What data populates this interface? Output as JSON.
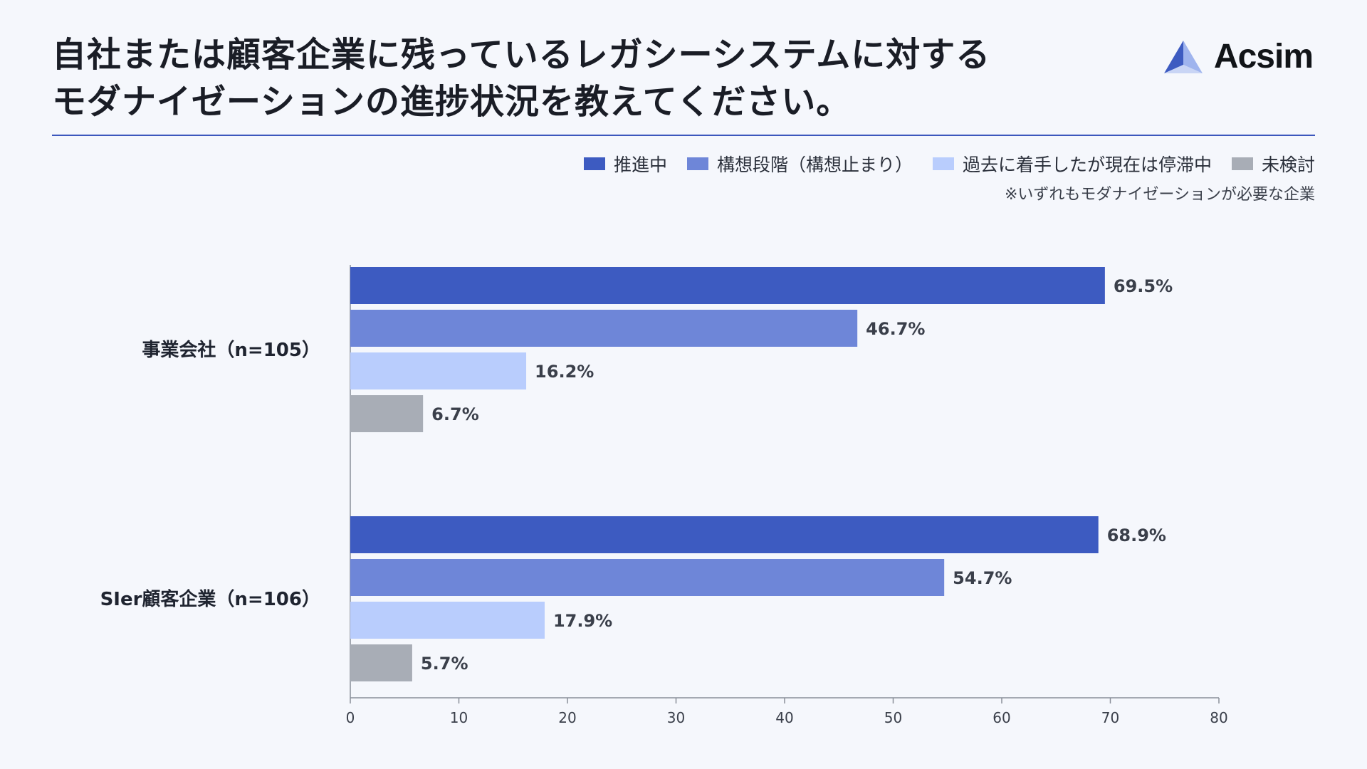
{
  "title": {
    "line1": "自社または顧客企業に残っているレガシーシステムに対する",
    "line2": "モダナイゼーションの進捗状況を教えてください。"
  },
  "logo": {
    "text": "Acsim"
  },
  "note": "※いずれもモダナイゼーションが必要な企業",
  "colors": {
    "series1": "#3d5bc1",
    "series2": "#6e86d8",
    "series3": "#b9cdfd",
    "series4": "#a8adb6",
    "rule": "#3c57bd"
  },
  "chart_data": {
    "type": "bar",
    "orientation": "horizontal",
    "categories": [
      "事業会社（n=105）",
      "SIer顧客企業（n=106）"
    ],
    "series": [
      {
        "name": "推進中",
        "values": [
          69.5,
          68.9
        ],
        "labels": [
          "69.5%",
          "68.9%"
        ]
      },
      {
        "name": "構想段階（構想止まり）",
        "values": [
          46.7,
          54.7
        ],
        "labels": [
          "46.7%",
          "54.7%"
        ]
      },
      {
        "name": "過去に着手したが現在は停滞中",
        "values": [
          16.2,
          17.9
        ],
        "labels": [
          "16.2%",
          "17.9%"
        ]
      },
      {
        "name": "未検討",
        "values": [
          6.7,
          5.7
        ],
        "labels": [
          "6.7%",
          "5.7%"
        ]
      }
    ],
    "xlim": [
      0,
      80
    ],
    "ticks": [
      "0",
      "10",
      "20",
      "30",
      "40",
      "50",
      "60",
      "70",
      "80"
    ],
    "legend_position": "top-right",
    "grid": false
  }
}
